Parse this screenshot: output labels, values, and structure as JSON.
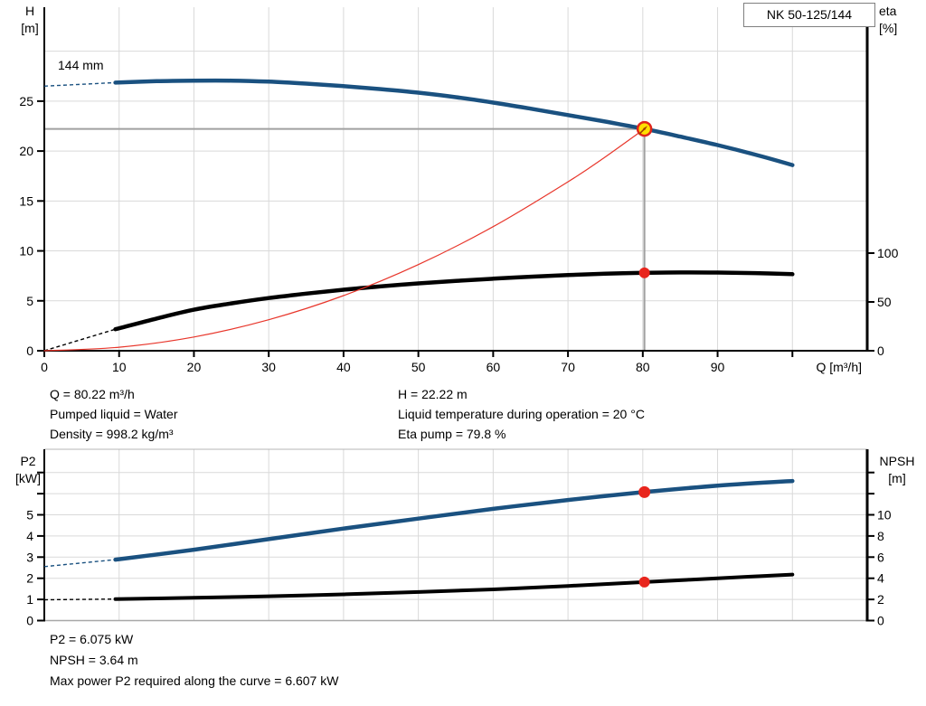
{
  "model_box": {
    "label": "NK 50-125/144"
  },
  "labels": {
    "h_axis": [
      "H",
      "[m]"
    ],
    "eta_axis": [
      "eta",
      "[%]"
    ],
    "q_axis": "Q [m³/h]",
    "p2_axis": [
      "P2",
      "[kW]"
    ],
    "npsh_axis": [
      "NPSH",
      "[m]"
    ],
    "curve_label": "144 mm"
  },
  "info_top": {
    "q": "Q = 80.22 m³/h",
    "h": "H = 22.22 m",
    "pumped_liquid": "Pumped liquid = Water",
    "liquid_temp": "Liquid temperature during operation = 20 °C",
    "density": "Density = 998.2 kg/m³",
    "eta_pump": "Eta pump = 79.8 %"
  },
  "info_bottom": {
    "p2": "P2 = 6.075 kW",
    "npsh": "NPSH = 3.64 m",
    "max_power": "Max power P2 required along the curve = 6.607 kW"
  },
  "colors": {
    "curve_blue": "#1a5180",
    "curve_black": "#000000",
    "system_red": "#e8362b",
    "dot_red": "#e8251d",
    "duty_fill": "#ffdf00",
    "duty_ring": "#e0251c",
    "duty_arrow": "#a04000",
    "grid": "#d9d9d9",
    "border_gray": "#b5b5b5",
    "crosshair": "#a0a0a0",
    "axis": "#000000"
  },
  "chart_data": [
    {
      "type": "line",
      "title": "Pump head and efficiency vs flow",
      "xlabel": "Q [m³/h]",
      "x_range": [
        0,
        110
      ],
      "x_ticks_labeled": [
        0,
        10,
        20,
        30,
        40,
        50,
        60,
        70,
        80,
        90
      ],
      "x_ticks_unlabeled": [
        100
      ],
      "x_gridlines": [
        10,
        20,
        30,
        40,
        50,
        60,
        70,
        80,
        90,
        100
      ],
      "left_axis": {
        "label": "H [m]",
        "range": [
          0,
          34.4
        ],
        "ticks_labeled": [
          0,
          5,
          10,
          15,
          20,
          25
        ],
        "gridlines": [
          5,
          10,
          15,
          20,
          25,
          30
        ]
      },
      "right_axis": {
        "label": "eta [%]",
        "range": [
          0,
          352
        ],
        "ticks_labeled": [
          0,
          50,
          100
        ]
      },
      "series": [
        {
          "name": "head-curve-144mm",
          "axis": "left",
          "color": "#1a5180",
          "width": 4.5,
          "dashed_lead": [
            [
              0,
              26.5
            ],
            [
              9.5,
              26.85
            ]
          ],
          "points": [
            [
              9.5,
              26.85
            ],
            [
              15,
              27.0
            ],
            [
              20,
              27.05
            ],
            [
              25,
              27.05
            ],
            [
              30,
              26.95
            ],
            [
              35,
              26.75
            ],
            [
              40,
              26.5
            ],
            [
              45,
              26.2
            ],
            [
              50,
              25.85
            ],
            [
              55,
              25.4
            ],
            [
              60,
              24.85
            ],
            [
              65,
              24.25
            ],
            [
              70,
              23.6
            ],
            [
              75,
              22.95
            ],
            [
              80.22,
              22.22
            ],
            [
              85,
              21.45
            ],
            [
              90,
              20.6
            ],
            [
              95,
              19.65
            ],
            [
              100,
              18.6
            ]
          ]
        },
        {
          "name": "eta-curve",
          "axis": "right",
          "color": "#000000",
          "width": 4.5,
          "dashed_lead": [
            [
              0,
              0
            ],
            [
              9.5,
              22
            ]
          ],
          "points": [
            [
              9.5,
              22
            ],
            [
              15,
              33
            ],
            [
              20,
              42
            ],
            [
              25,
              48.5
            ],
            [
              30,
              54
            ],
            [
              35,
              58.5
            ],
            [
              40,
              62.5
            ],
            [
              45,
              66
            ],
            [
              50,
              69
            ],
            [
              55,
              71.5
            ],
            [
              60,
              73.8
            ],
            [
              65,
              75.8
            ],
            [
              70,
              77.5
            ],
            [
              75,
              78.9
            ],
            [
              80.22,
              79.8
            ],
            [
              85,
              80.2
            ],
            [
              90,
              80.1
            ],
            [
              95,
              79.5
            ],
            [
              100,
              78.4
            ]
          ]
        },
        {
          "name": "system-curve",
          "axis": "left",
          "color": "#e8362b",
          "width": 1.2,
          "dashed_lead": [],
          "points": [
            [
              0,
              0
            ],
            [
              10,
              0.35
            ],
            [
              20,
              1.38
            ],
            [
              30,
              3.11
            ],
            [
              40,
              5.52
            ],
            [
              50,
              8.63
            ],
            [
              60,
              12.43
            ],
            [
              70,
              16.92
            ],
            [
              75,
              19.42
            ],
            [
              80.22,
              22.22
            ]
          ]
        }
      ],
      "duty_point": {
        "q": 80.22,
        "h": 22.22,
        "eta": 79.8
      }
    },
    {
      "type": "line",
      "title": "Power P2 and NPSH vs flow",
      "xlabel": "Q [m³/h]",
      "x_range": [
        0,
        110
      ],
      "x_gridlines": [
        10,
        20,
        30,
        40,
        50,
        60,
        70,
        80,
        90,
        100
      ],
      "left_axis": {
        "label": "P2 [kW]",
        "range": [
          0,
          8.1
        ],
        "ticks_labeled": [
          0,
          1,
          2,
          3,
          4,
          5
        ],
        "ticks_unlabeled": [
          6,
          7
        ],
        "gridlines": [
          1,
          2,
          3,
          4,
          5,
          6,
          7
        ]
      },
      "right_axis": {
        "label": "NPSH [m]",
        "range": [
          0,
          16.2
        ],
        "ticks_labeled": [
          0,
          2,
          4,
          6,
          8,
          10
        ],
        "ticks_unlabeled": [
          12,
          14
        ]
      },
      "series": [
        {
          "name": "p2-curve",
          "axis": "left",
          "color": "#1a5180",
          "width": 4.5,
          "dashed_lead": [
            [
              0,
              2.55
            ],
            [
              9.5,
              2.88
            ]
          ],
          "points": [
            [
              9.5,
              2.88
            ],
            [
              20,
              3.35
            ],
            [
              30,
              3.85
            ],
            [
              40,
              4.35
            ],
            [
              50,
              4.82
            ],
            [
              60,
              5.28
            ],
            [
              70,
              5.7
            ],
            [
              80.22,
              6.075
            ],
            [
              90,
              6.38
            ],
            [
              100,
              6.6
            ]
          ]
        },
        {
          "name": "npsh-curve",
          "axis": "right",
          "color": "#000000",
          "width": 4,
          "dashed_lead": [
            [
              0,
              1.97
            ],
            [
              9.5,
              2.03
            ]
          ],
          "points": [
            [
              9.5,
              2.03
            ],
            [
              20,
              2.15
            ],
            [
              30,
              2.3
            ],
            [
              40,
              2.48
            ],
            [
              50,
              2.7
            ],
            [
              60,
              2.95
            ],
            [
              70,
              3.27
            ],
            [
              80.22,
              3.64
            ],
            [
              90,
              4.0
            ],
            [
              100,
              4.35
            ]
          ]
        }
      ],
      "duty_point": {
        "q": 80.22,
        "p2": 6.075,
        "npsh": 3.64
      }
    }
  ]
}
